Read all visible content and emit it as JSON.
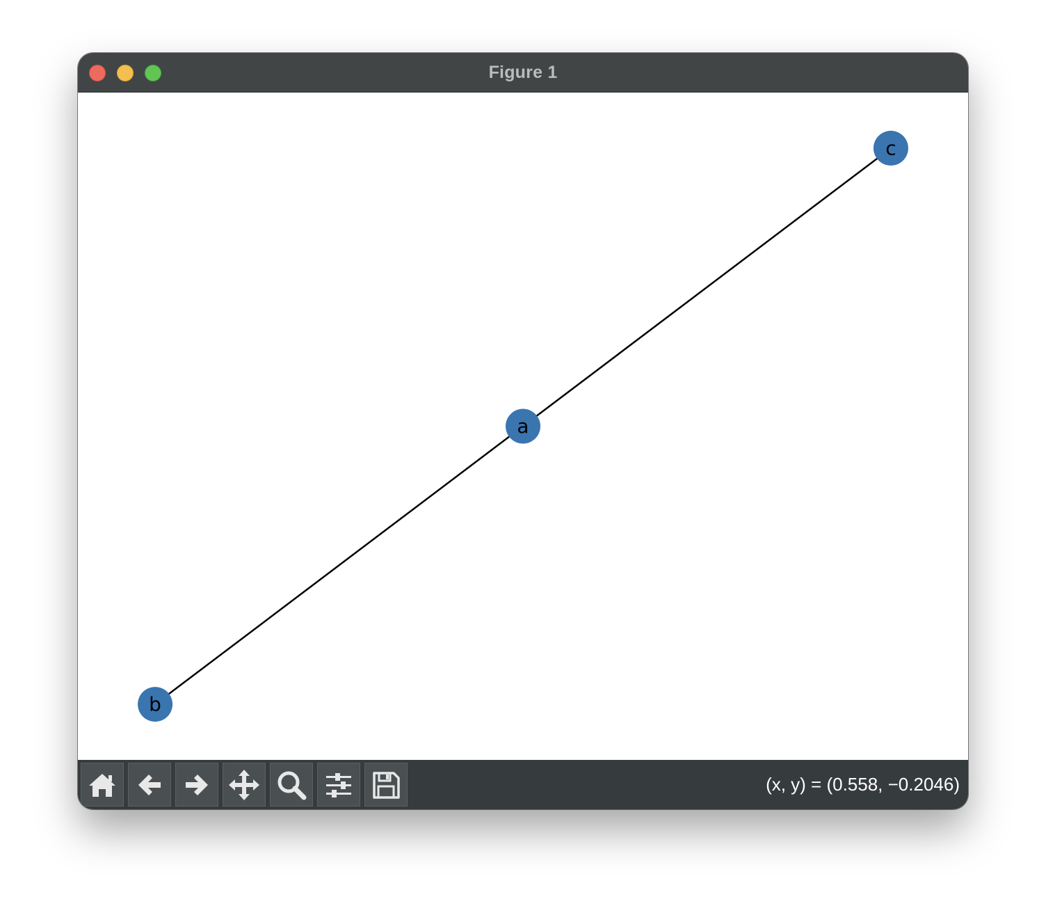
{
  "window": {
    "title": "Figure 1"
  },
  "toolbar": {
    "buttons": [
      {
        "name": "home",
        "icon": "home-icon"
      },
      {
        "name": "back",
        "icon": "arrow-left-icon"
      },
      {
        "name": "forward",
        "icon": "arrow-right-icon"
      },
      {
        "name": "pan",
        "icon": "move-icon"
      },
      {
        "name": "zoom",
        "icon": "search-icon"
      },
      {
        "name": "configure-subplots",
        "icon": "sliders-icon"
      },
      {
        "name": "save",
        "icon": "floppy-disk-icon"
      }
    ],
    "coords": "(x, y) = (0.558, −0.2046)"
  },
  "chart_data": {
    "type": "graph",
    "nodes": [
      {
        "label": "a",
        "x": 0.0,
        "y": 0.0
      },
      {
        "label": "b",
        "x": -1.0,
        "y": -0.75
      },
      {
        "label": "c",
        "x": 1.0,
        "y": 0.75
      }
    ],
    "edges": [
      [
        "a",
        "b"
      ],
      [
        "a",
        "c"
      ]
    ],
    "xlim": [
      -1.21,
      1.21
    ],
    "ylim": [
      -0.9,
      0.9
    ],
    "node_color": "#3a75b0",
    "edge_color": "#000000",
    "label_color": "#000000"
  }
}
